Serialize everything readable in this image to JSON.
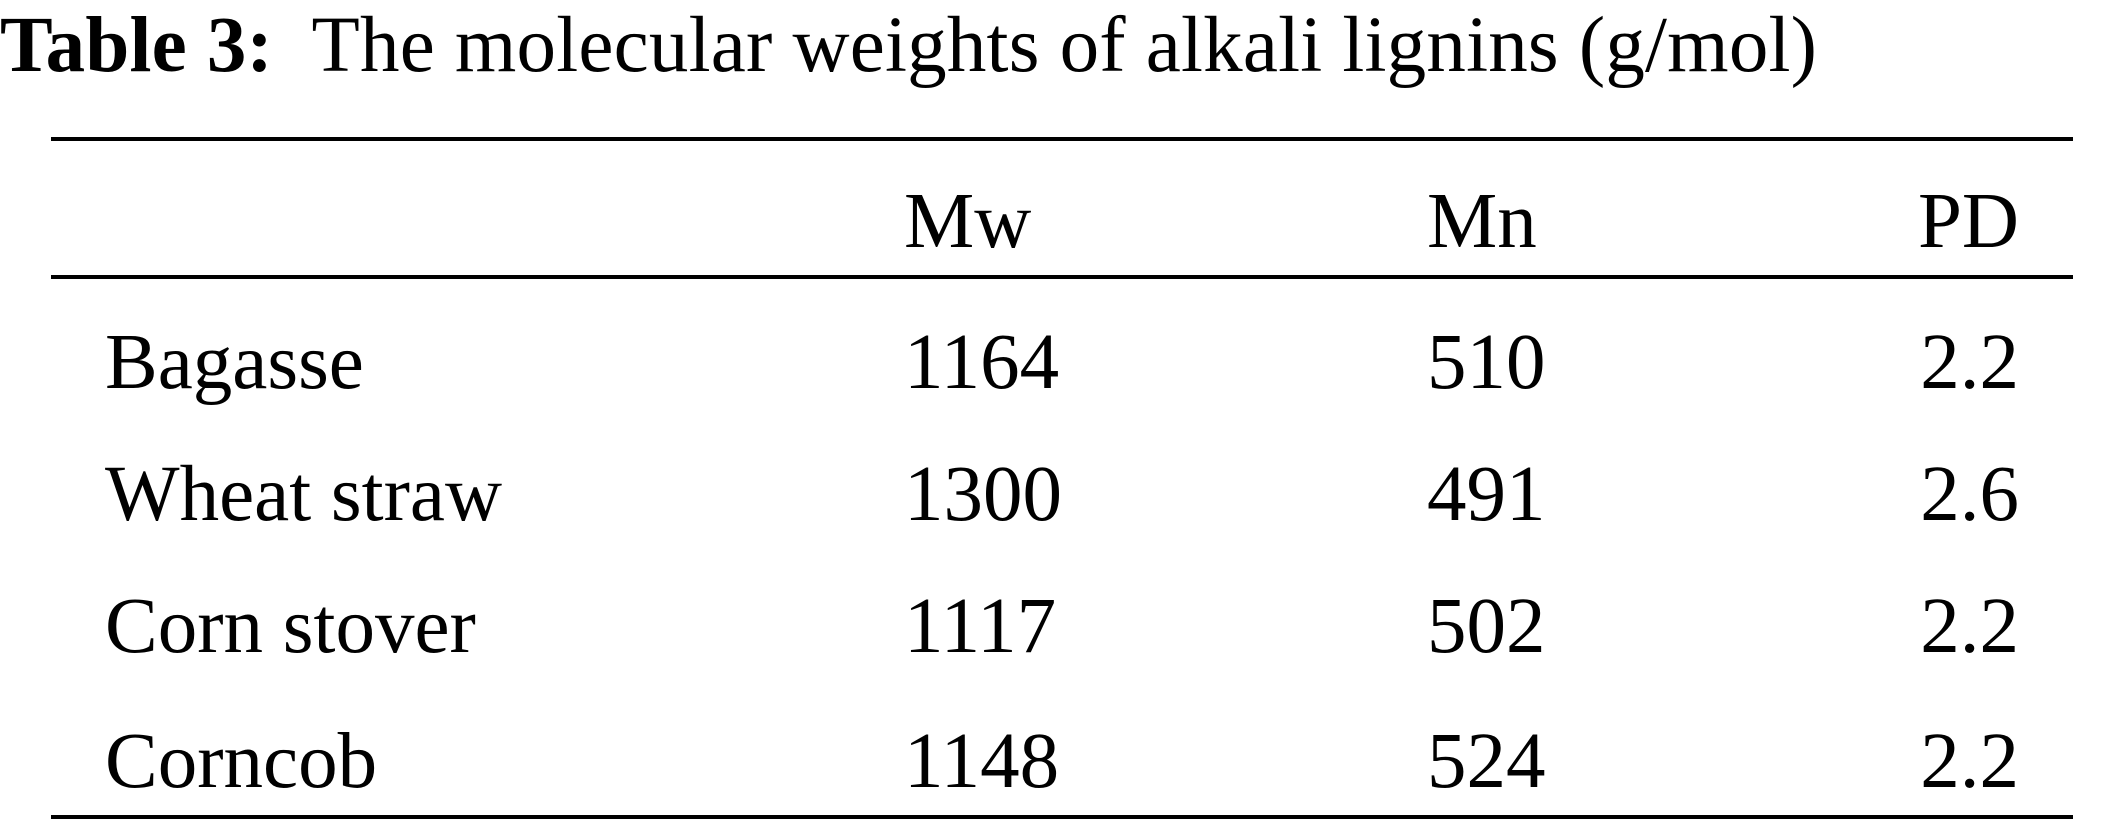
{
  "caption": {
    "label": "Table 3:",
    "text": "The molecular weights of alkali lignins (g/mol)"
  },
  "table": {
    "headers": [
      "",
      "Mw",
      "Mn",
      "PD"
    ],
    "rows": [
      [
        "Bagasse",
        "1164",
        "510",
        "2.2"
      ],
      [
        "Wheat straw",
        "1300",
        "491",
        "2.6"
      ],
      [
        "Corn stover",
        "1117",
        "502",
        "2.2"
      ],
      [
        "Corncob",
        "1148",
        "524",
        "2.2"
      ]
    ]
  }
}
